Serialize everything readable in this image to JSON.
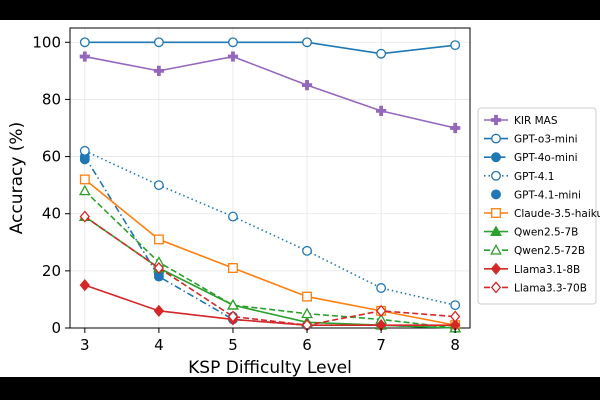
{
  "chart_data": {
    "type": "line",
    "title": "",
    "xlabel": "KSP Difficulty Level",
    "ylabel": "Accuracy (%)",
    "x": [
      3,
      4,
      5,
      6,
      7,
      8
    ],
    "xlim": [
      2.8,
      8.2
    ],
    "ylim": [
      0,
      105
    ],
    "yticks": [
      0,
      20,
      40,
      60,
      80,
      100
    ],
    "grid": true,
    "legend_position": "right",
    "series": [
      {
        "name": "KIR MAS",
        "values": [
          95,
          90,
          95,
          85,
          76,
          70
        ],
        "color": "#9467bd",
        "linestyle": "solid",
        "marker": "plus",
        "filled": true
      },
      {
        "name": "GPT-o3-mini",
        "values": [
          100,
          100,
          100,
          100,
          96,
          99
        ],
        "color": "#1f77b4",
        "linestyle": "solid",
        "marker": "circle",
        "filled": false
      },
      {
        "name": "GPT-4o-mini",
        "values": [
          60,
          18,
          3,
          1,
          1,
          0
        ],
        "color": "#1f77b4",
        "linestyle": "dashdot",
        "marker": "circle",
        "filled": true
      },
      {
        "name": "GPT-4.1",
        "values": [
          62,
          50,
          39,
          27,
          14,
          8
        ],
        "color": "#1f77b4",
        "linestyle": "dotted",
        "marker": "circle",
        "filled": false
      },
      {
        "name": "GPT-4.1-mini",
        "values": [
          59,
          19,
          4,
          1,
          1,
          0
        ],
        "color": "#1f77b4",
        "linestyle": "none",
        "marker": "circle",
        "filled": true
      },
      {
        "name": "Claude-3.5-haiku",
        "values": [
          52,
          31,
          21,
          11,
          6,
          1
        ],
        "color": "#ff7f0e",
        "linestyle": "solid",
        "marker": "square",
        "filled": false
      },
      {
        "name": "Qwen2.5-7B",
        "values": [
          39,
          21,
          8,
          2,
          1,
          0
        ],
        "color": "#2ca02c",
        "linestyle": "solid",
        "marker": "triangle",
        "filled": true
      },
      {
        "name": "Qwen2.5-72B",
        "values": [
          48,
          23,
          8,
          5,
          3,
          0
        ],
        "color": "#2ca02c",
        "linestyle": "dashed",
        "marker": "triangle",
        "filled": false
      },
      {
        "name": "Llama3.1-8B",
        "values": [
          15,
          6,
          3,
          1,
          1,
          1
        ],
        "color": "#d62728",
        "linestyle": "solid",
        "marker": "diamond",
        "filled": true
      },
      {
        "name": "Llama3.3-70B",
        "values": [
          39,
          21,
          4,
          1,
          6,
          4
        ],
        "color": "#d62728",
        "linestyle": "dashed",
        "marker": "diamond",
        "filled": false
      }
    ]
  }
}
